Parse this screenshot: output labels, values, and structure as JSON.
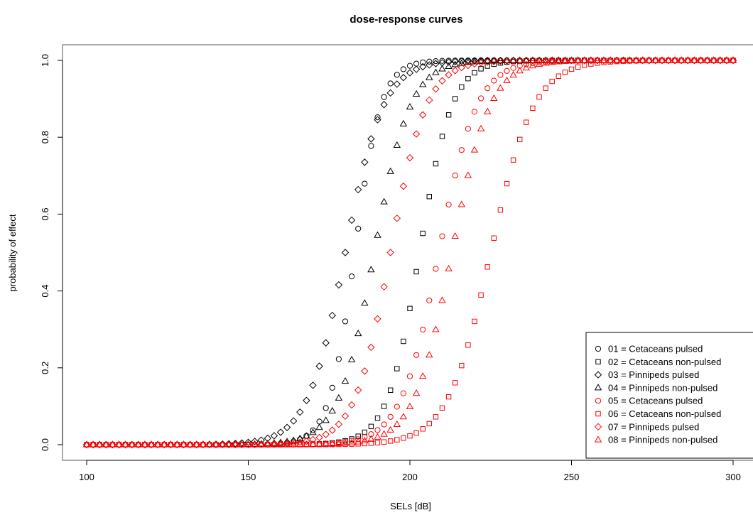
{
  "chart_data": {
    "type": "scatter",
    "title": "dose-response curves",
    "xlabel": "SELs [dB]",
    "ylabel": "probability of effect",
    "xlim": [
      100,
      300
    ],
    "ylim": [
      0,
      1
    ],
    "x_ticks": [
      "100",
      "150",
      "200",
      "250",
      "300"
    ],
    "y_ticks": [
      "0.0",
      "0.2",
      "0.4",
      "0.6",
      "0.8",
      "1.0"
    ],
    "x_range": {
      "start": 100,
      "end": 300,
      "step": 2
    },
    "grid": false,
    "legend_position": "bottom-right",
    "series": [
      {
        "name": "01 = Cetaceans pulsed",
        "marker": "circle",
        "color": "#000000",
        "midpoint": 183,
        "slope": 0.25
      },
      {
        "name": "02 = Cetaceans non-pulsed",
        "marker": "square",
        "color": "#000000",
        "midpoint": 203,
        "slope": 0.2
      },
      {
        "name": "03 = Pinnipeds pulsed",
        "marker": "diamond",
        "color": "#000000",
        "midpoint": 180,
        "slope": 0.17
      },
      {
        "name": "04 = Pinnipeds non-pulsed",
        "marker": "triangle",
        "color": "#000000",
        "midpoint": 189,
        "slope": 0.18
      },
      {
        "name": "05 = Cetaceans pulsed",
        "marker": "circle",
        "color": "#ff0000",
        "midpoint": 209,
        "slope": 0.17
      },
      {
        "name": "06 = Cetaceans non-pulsed",
        "marker": "square",
        "color": "#ff0000",
        "midpoint": 225,
        "slope": 0.15
      },
      {
        "name": "07 = Pinnipeds pulsed",
        "marker": "diamond",
        "color": "#ff0000",
        "midpoint": 194,
        "slope": 0.18
      },
      {
        "name": "08 = Pinnipeds non-pulsed",
        "marker": "triangle",
        "color": "#ff0000",
        "midpoint": 213,
        "slope": 0.17
      }
    ]
  }
}
